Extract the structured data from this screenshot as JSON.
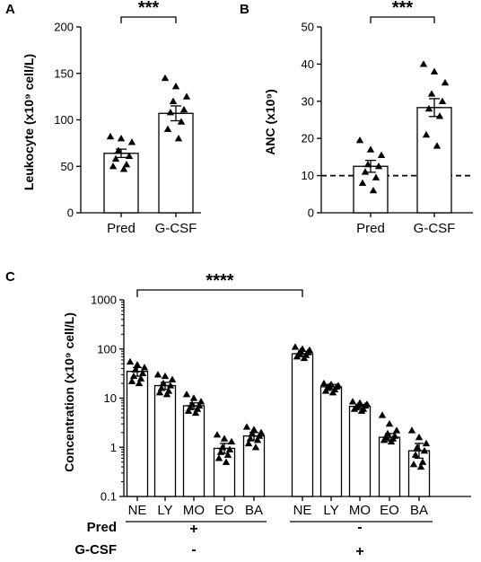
{
  "chart_data": [
    {
      "panel": "A",
      "type": "bar",
      "ylabel": "Leukocyte (x10⁹ cell/L)",
      "ylim": [
        0,
        200
      ],
      "yticks": [
        0,
        50,
        100,
        150,
        200
      ],
      "categories": [
        "Pred",
        "G-CSF"
      ],
      "means": [
        64,
        107
      ],
      "sem": [
        4.5,
        8
      ],
      "points": [
        [
          82,
          80,
          76,
          67,
          61,
          58,
          52,
          50,
          47
        ],
        [
          145,
          136,
          125,
          120,
          111,
          108,
          98,
          90,
          80
        ]
      ],
      "significance": "***"
    },
    {
      "panel": "B",
      "type": "bar",
      "ylabel": "ANC (x10⁹)",
      "ylim": [
        0,
        50
      ],
      "yticks": [
        0,
        10,
        20,
        30,
        40,
        50
      ],
      "categories": [
        "Pred",
        "G-CSF"
      ],
      "means": [
        12.5,
        28.3
      ],
      "sem": [
        1.6,
        2.4
      ],
      "points": [
        [
          19.5,
          17,
          15.5,
          13,
          12.5,
          11,
          9.5,
          8,
          6
        ],
        [
          40,
          38,
          35,
          32,
          30,
          28,
          26,
          21,
          18
        ]
      ],
      "reference_line": 10,
      "significance": "***"
    },
    {
      "panel": "C",
      "type": "bar",
      "ylabel": "Concentration (x10⁹ cell/L)",
      "yscale": "log",
      "ylim": [
        0.1,
        1000
      ],
      "yticks": [
        "0.1",
        "1",
        "10",
        "100",
        "1000"
      ],
      "categories": [
        "NE",
        "LY",
        "MO",
        "EO",
        "BA",
        "NE",
        "LY",
        "MO",
        "EO",
        "BA"
      ],
      "means": [
        35,
        18,
        7,
        0.95,
        1.7,
        80,
        17,
        6.8,
        1.6,
        0.85
      ],
      "sem_low": [
        28,
        15,
        6,
        0.75,
        1.4,
        70,
        15,
        6.2,
        1.35,
        0.6
      ],
      "sem_high": [
        42,
        21,
        8,
        1.2,
        2.0,
        90,
        19,
        7.4,
        1.9,
        1.2
      ],
      "points": [
        [
          55,
          48,
          42,
          38,
          32,
          28,
          25,
          22,
          20
        ],
        [
          30,
          28,
          24,
          20,
          18,
          16,
          14,
          13,
          12
        ],
        [
          12,
          10,
          8.5,
          7.5,
          7,
          6.5,
          6,
          5.5,
          5
        ],
        [
          1.8,
          1.5,
          1.3,
          1.0,
          0.9,
          0.8,
          0.7,
          0.6,
          0.5
        ],
        [
          2.6,
          2.3,
          2.0,
          1.9,
          1.7,
          1.5,
          1.4,
          1.2,
          1.0
        ],
        [
          110,
          100,
          95,
          90,
          85,
          80,
          75,
          70,
          65
        ],
        [
          20,
          19,
          18,
          17.5,
          17,
          16,
          15,
          14,
          13
        ],
        [
          8.5,
          8,
          7.5,
          7,
          7,
          6.5,
          6,
          6,
          5.5
        ],
        [
          4.5,
          3.0,
          2.2,
          1.9,
          1.7,
          1.6,
          1.5,
          1.4,
          1.3
        ],
        [
          2.2,
          1.6,
          1.2,
          1.0,
          0.85,
          0.7,
          0.5,
          0.45,
          0.4
        ]
      ],
      "group_rows": [
        {
          "label": "Pred",
          "signs": [
            "+",
            "-"
          ]
        },
        {
          "label": "G-CSF",
          "signs": [
            "-",
            "+"
          ]
        }
      ],
      "significance": "****"
    }
  ],
  "panels": {
    "A": {
      "label": "A",
      "ylabel": "Leukocyte (x10⁹ cell/L)",
      "stars": "***"
    },
    "B": {
      "label": "B",
      "ylabel": "ANC (x10⁹)",
      "stars": "***"
    },
    "C": {
      "label": "C",
      "ylabel": "Concentration (x10⁹ cell/L)",
      "stars": "****"
    }
  }
}
